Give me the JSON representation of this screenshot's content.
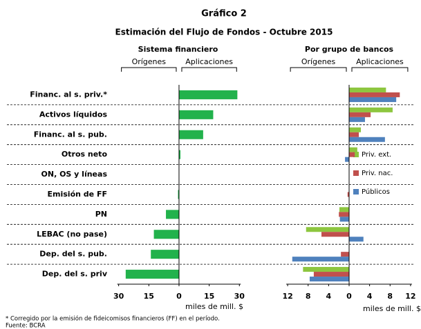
{
  "title": "Gráfico 2",
  "subtitle": "Estimación del Flujo de Fondos - Octubre 2015",
  "notes": [
    "* Corregido por la emisión de fideicomisos financieros (FF) en el período.",
    "Fuente: BCRA"
  ],
  "chart_data": [
    {
      "type": "bar",
      "orientation": "horizontal",
      "title": "Sistema financiero",
      "left_label": "Orígenes",
      "right_label": "Aplicaciones",
      "xlabel": "miles de mill. $",
      "categories": [
        "Financ. al s. priv.*",
        "Activos líquidos",
        "Financ. al s. pub.",
        "Otros neto",
        "ON, OS y líneas",
        "Emisión de FF",
        "PN",
        "LEBAC (no pase)",
        "Dep. del s. pub.",
        "Dep. del s. priv"
      ],
      "values": [
        29,
        17,
        12,
        0.7,
        0,
        -0.5,
        -6.5,
        -12.5,
        -14,
        -26.5
      ],
      "color": "#22b24c",
      "xlim": [
        -34,
        33
      ],
      "xticks": [
        {
          "value": -30,
          "label": "30"
        },
        {
          "value": -15,
          "label": "15"
        },
        0,
        15,
        30
      ]
    },
    {
      "type": "bar",
      "orientation": "horizontal",
      "title": "Por grupo de bancos",
      "left_label": "Orígenes",
      "right_label": "Aplicaciones",
      "xlabel": "miles de mill. $",
      "series": [
        {
          "name": "Priv. ext.",
          "color": "#8dc63f",
          "values": [
            7.2,
            8.5,
            2.3,
            1.6,
            0,
            0,
            -1.9,
            -8.4,
            0,
            -9
          ]
        },
        {
          "name": "Priv. nac.",
          "color": "#c0504d",
          "values": [
            9.9,
            4.2,
            1.9,
            1.1,
            0,
            -0.3,
            -2,
            -5.4,
            -1.6,
            -6.9
          ]
        },
        {
          "name": "Públicos",
          "color": "#4f81bd",
          "values": [
            9.2,
            3.1,
            7,
            -0.8,
            0,
            0,
            -1.8,
            2.8,
            -11.1,
            -7.7
          ]
        }
      ],
      "legend": "right",
      "xlim": [
        -13.5,
        13.5
      ],
      "xticks": [
        {
          "value": -12,
          "label": "12"
        },
        {
          "value": -8,
          "label": "8"
        },
        {
          "value": -4,
          "label": "4"
        },
        0,
        4,
        8,
        12
      ]
    }
  ]
}
